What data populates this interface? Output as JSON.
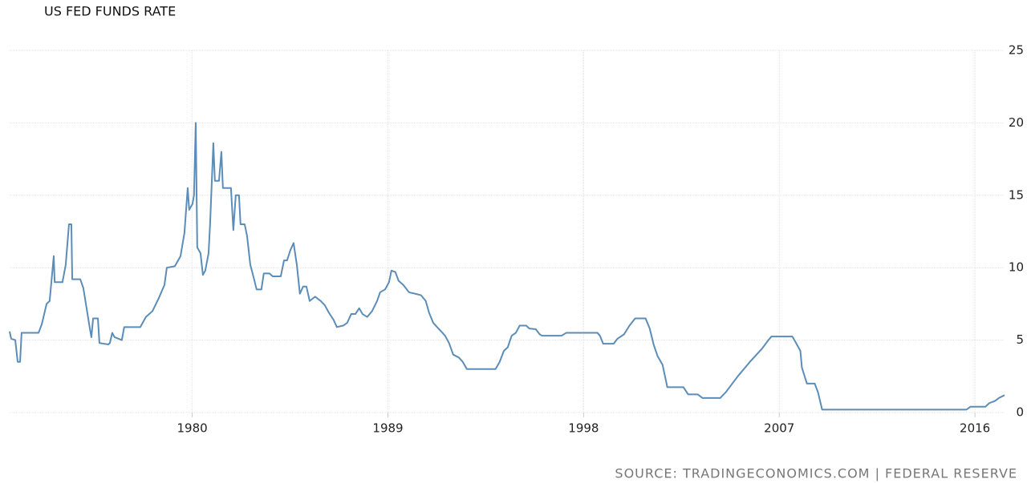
{
  "chart_data": {
    "type": "line",
    "title": "US FED FUNDS RATE",
    "source": "SOURCE: TRADINGECONOMICS.COM | FEDERAL RESERVE",
    "x": [
      1971.6,
      1971.67,
      1971.86,
      1971.97,
      1972.08,
      1972.15,
      1972.93,
      1973.08,
      1973.3,
      1973.44,
      1973.63,
      1973.67,
      1974.03,
      1974.18,
      1974.33,
      1974.44,
      1974.48,
      1974.85,
      1974.99,
      1975.14,
      1975.29,
      1975.36,
      1975.44,
      1975.66,
      1975.73,
      1976.14,
      1976.21,
      1976.32,
      1976.43,
      1976.76,
      1976.87,
      1977.61,
      1977.87,
      1978.17,
      1978.46,
      1978.72,
      1978.83,
      1979.2,
      1979.46,
      1979.64,
      1979.79,
      1979.86,
      1980.01,
      1980.08,
      1980.16,
      1980.23,
      1980.38,
      1980.49,
      1980.6,
      1980.75,
      1980.82,
      1980.97,
      1981.04,
      1981.23,
      1981.34,
      1981.41,
      1981.78,
      1981.89,
      1982.0,
      1982.15,
      1982.22,
      1982.41,
      1982.52,
      1982.67,
      1982.81,
      1982.96,
      1983.18,
      1983.29,
      1983.55,
      1983.7,
      1984.07,
      1984.22,
      1984.36,
      1984.51,
      1984.66,
      1984.81,
      1984.95,
      1985.1,
      1985.25,
      1985.4,
      1985.65,
      1985.91,
      1986.1,
      1986.28,
      1986.5,
      1986.65,
      1986.94,
      1987.13,
      1987.31,
      1987.5,
      1987.68,
      1987.83,
      1988.05,
      1988.27,
      1988.5,
      1988.64,
      1988.87,
      1989.05,
      1989.16,
      1989.34,
      1989.49,
      1989.71,
      1989.97,
      1990.26,
      1990.52,
      1990.74,
      1990.89,
      1991.08,
      1991.26,
      1991.45,
      1991.63,
      1991.81,
      1992.0,
      1992.26,
      1992.44,
      1992.63,
      1993.95,
      1994.14,
      1994.33,
      1994.51,
      1994.69,
      1994.88,
      1995.06,
      1995.36,
      1995.5,
      1995.8,
      1995.98,
      1996.09,
      1996.98,
      1997.2,
      1998.64,
      1998.75,
      1998.9,
      1999.38,
      1999.56,
      1999.86,
      2000.11,
      2000.37,
      2000.85,
      2001.04,
      2001.22,
      2001.4,
      2001.63,
      2001.85,
      2002.59,
      2002.81,
      2003.25,
      2003.47,
      2004.28,
      2004.54,
      2005.09,
      2005.65,
      2006.2,
      2006.5,
      2006.64,
      2007.6,
      2007.79,
      2007.97,
      2008.04,
      2008.27,
      2008.63,
      2008.78,
      2008.97,
      2015.61,
      2015.79,
      2016.48,
      2016.66,
      2016.92,
      2017.1,
      2017.36
    ],
    "series": [
      {
        "name": "Fed Funds Rate",
        "color": "#5b8db8",
        "values": [
          5.6,
          5.1,
          5.0,
          3.5,
          3.5,
          5.5,
          5.5,
          6.1,
          7.5,
          7.7,
          10.8,
          9.0,
          9.0,
          10.2,
          13.0,
          13.0,
          9.2,
          9.2,
          8.6,
          7.2,
          5.8,
          5.2,
          6.5,
          6.5,
          4.8,
          4.7,
          4.8,
          5.5,
          5.2,
          5.0,
          5.9,
          5.9,
          6.6,
          7.0,
          7.9,
          8.8,
          10.0,
          10.1,
          10.8,
          12.4,
          15.5,
          14.0,
          14.4,
          15.0,
          20.0,
          11.4,
          11.0,
          9.5,
          9.8,
          11.0,
          13.0,
          18.6,
          16.0,
          16.0,
          18.0,
          15.5,
          15.5,
          12.6,
          15.0,
          15.0,
          13.0,
          13.0,
          12.2,
          10.2,
          9.4,
          8.5,
          8.5,
          9.6,
          9.6,
          9.4,
          9.4,
          10.5,
          10.5,
          11.2,
          11.7,
          10.2,
          8.2,
          8.7,
          8.7,
          7.7,
          8.0,
          7.7,
          7.4,
          6.9,
          6.4,
          5.9,
          6.0,
          6.2,
          6.8,
          6.8,
          7.2,
          6.8,
          6.6,
          7.0,
          7.7,
          8.3,
          8.5,
          9.0,
          9.8,
          9.7,
          9.1,
          8.8,
          8.3,
          8.2,
          8.1,
          7.7,
          6.9,
          6.2,
          5.9,
          5.6,
          5.3,
          4.8,
          4.0,
          3.8,
          3.5,
          3.0,
          3.0,
          3.5,
          4.25,
          4.5,
          5.3,
          5.5,
          6.0,
          6.0,
          5.8,
          5.75,
          5.4,
          5.3,
          5.3,
          5.5,
          5.5,
          5.3,
          4.75,
          4.75,
          5.1,
          5.4,
          6.0,
          6.5,
          6.5,
          5.8,
          4.7,
          3.9,
          3.3,
          1.75,
          1.75,
          1.25,
          1.25,
          1.0,
          1.0,
          1.4,
          2.5,
          3.5,
          4.4,
          5.0,
          5.25,
          5.25,
          4.75,
          4.25,
          3.1,
          2.0,
          2.0,
          1.4,
          0.2,
          0.2,
          0.4,
          0.4,
          0.65,
          0.8,
          1.0,
          1.2
        ]
      }
    ],
    "xlim": [
      1971.6,
      2017.36
    ],
    "xticks": [
      1980,
      1989,
      1998,
      2007,
      2016
    ],
    "ylim": [
      0,
      25
    ],
    "yticks": [
      0,
      5,
      10,
      15,
      20,
      25
    ],
    "grid": true
  }
}
